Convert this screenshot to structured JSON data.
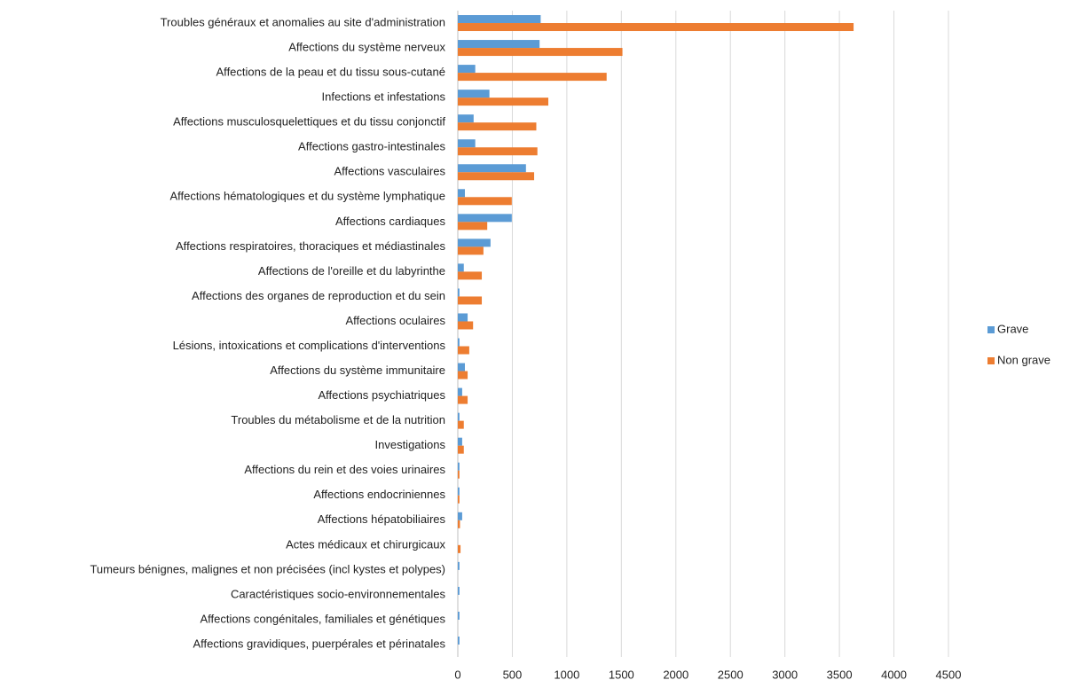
{
  "chart_data": {
    "type": "bar",
    "orientation": "horizontal",
    "categories": [
      "Troubles généraux et anomalies au site d'administration",
      "Affections du système nerveux",
      "Affections de la peau et du tissu sous-cutané",
      "Infections et infestations",
      "Affections musculosquelettiques et du tissu conjonctif",
      "Affections gastro-intestinales",
      "Affections vasculaires",
      "Affections hématologiques et du système lymphatique",
      "Affections cardiaques",
      "Affections respiratoires, thoraciques et médiastinales",
      "Affections de l'oreille et du labyrinthe",
      "Affections des organes de reproduction et du sein",
      "Affections oculaires",
      "Lésions, intoxications et complications d'interventions",
      "Affections du système immunitaire",
      "Affections psychiatriques",
      "Troubles du métabolisme et de la nutrition",
      "Investigations",
      "Affections du rein et des voies urinaires",
      "Affections endocriniennes",
      "Affections hépatobiliaires",
      "Actes médicaux et chirurgicaux",
      "Tumeurs bénignes, malignes et non précisées (incl kystes et polypes)",
      "Caractéristiques socio-environnementales",
      "Affections congénitales, familiales et génétiques",
      "Affections gravidiques, puerpérales et périnatales"
    ],
    "series": [
      {
        "name": "Grave",
        "color": "#5b9bd5",
        "values": [
          760,
          750,
          160,
          290,
          145,
          160,
          625,
          65,
          495,
          300,
          55,
          15,
          90,
          15,
          65,
          40,
          15,
          40,
          15,
          15,
          40,
          0,
          15,
          15,
          15,
          15
        ]
      },
      {
        "name": "Non grave",
        "color": "#ed7d31",
        "values": [
          3630,
          1510,
          1365,
          830,
          720,
          730,
          700,
          495,
          270,
          235,
          220,
          220,
          140,
          105,
          90,
          90,
          55,
          55,
          15,
          15,
          20,
          25,
          0,
          0,
          0,
          0
        ]
      }
    ],
    "xlim": [
      0,
      4500
    ],
    "xticks": [
      0,
      500,
      1000,
      1500,
      2000,
      2500,
      3000,
      3500,
      4000,
      4500
    ],
    "grid": true,
    "legend": "right"
  }
}
